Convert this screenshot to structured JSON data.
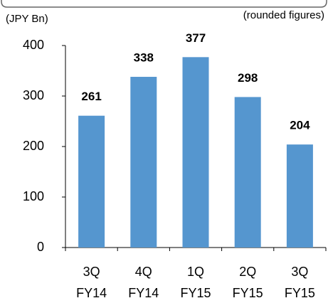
{
  "chart_data": {
    "type": "bar",
    "y_label": "(JPY Bn)",
    "note": "(rounded figures)",
    "categories": [
      "3Q FY14",
      "4Q FY14",
      "1Q FY15",
      "2Q FY15",
      "3Q FY15"
    ],
    "values": [
      261,
      338,
      377,
      298,
      204
    ],
    "color": "#5596cf",
    "ylim": [
      0,
      400
    ],
    "yticks": [
      0,
      100,
      200,
      300,
      400
    ],
    "grid": false
  }
}
